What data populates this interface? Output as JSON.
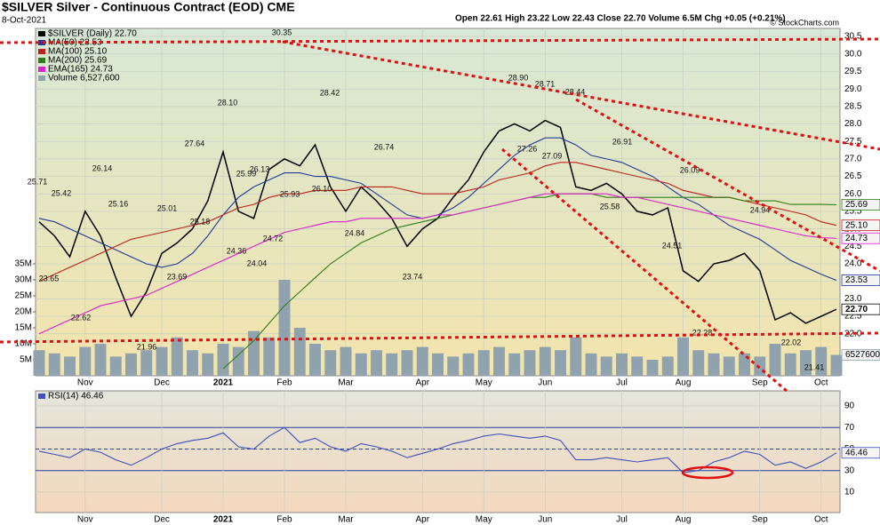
{
  "chart_data": [
    {
      "type": "line",
      "title": "$SILVER Silver - Continuous Contract (EOD) CME",
      "subtitle": "8-Oct-2021",
      "quote": "Open 22.61 High 23.22 Low 22.43 Close 22.70 Volume 6.5M Chg +0.05 (+0.21%)",
      "credit": "© StockCharts.com",
      "categories": [
        null,
        null,
        null,
        "Nov",
        null,
        null,
        null,
        null,
        "Dec",
        null,
        null,
        null,
        "2021",
        null,
        null,
        null,
        "Feb",
        null,
        null,
        null,
        "Mar",
        null,
        null,
        null,
        null,
        "Apr",
        null,
        null,
        null,
        "May",
        null,
        null,
        null,
        "Jun",
        null,
        null,
        null,
        null,
        "Jul",
        null,
        null,
        null,
        "Aug",
        null,
        null,
        null,
        null,
        "Sep",
        null,
        null,
        null,
        "Oct",
        null
      ],
      "series": [
        {
          "name": "$SILVER (Daily) 22.70",
          "color": "#000000",
          "last_label": "22.70",
          "values": [
            25.2,
            24.8,
            24.2,
            25.5,
            24.8,
            23.6,
            22.5,
            23.2,
            24.3,
            24.6,
            25.0,
            25.8,
            27.2,
            25.5,
            25.3,
            26.7,
            27.0,
            26.8,
            27.4,
            26.2,
            25.5,
            26.2,
            25.8,
            25.3,
            24.5,
            25.0,
            25.3,
            25.9,
            26.4,
            27.2,
            27.8,
            28.0,
            27.8,
            28.1,
            27.9,
            26.2,
            26.1,
            26.3,
            26.0,
            25.5,
            25.4,
            25.6,
            23.8,
            23.5,
            24.0,
            24.1,
            24.3,
            23.8,
            22.4,
            22.6,
            22.3,
            22.5,
            22.7
          ]
        },
        {
          "name": "MA(50) 23.53",
          "color": "#1f3a9a",
          "last_label": "23.53",
          "values": [
            25.3,
            25.2,
            25.0,
            24.8,
            24.6,
            24.4,
            24.2,
            24.0,
            23.9,
            24.0,
            24.3,
            24.8,
            25.4,
            25.9,
            26.2,
            26.4,
            26.6,
            26.6,
            26.5,
            26.5,
            26.4,
            26.3,
            26.0,
            25.7,
            25.4,
            25.3,
            25.4,
            25.6,
            25.9,
            26.3,
            26.7,
            27.1,
            27.4,
            27.6,
            27.6,
            27.4,
            27.1,
            27.0,
            26.9,
            26.7,
            26.5,
            26.2,
            25.9,
            25.7,
            25.4,
            25.1,
            24.9,
            24.7,
            24.4,
            24.1,
            23.9,
            23.7,
            23.53
          ]
        },
        {
          "name": "MA(100) 25.10",
          "color": "#c0201c",
          "last_label": "25.10",
          "values": [
            23.5,
            23.7,
            23.9,
            24.1,
            24.3,
            24.5,
            24.7,
            24.8,
            24.9,
            25.0,
            25.1,
            25.2,
            25.4,
            25.6,
            25.7,
            25.9,
            26.0,
            26.0,
            26.1,
            26.1,
            26.1,
            26.2,
            26.2,
            26.2,
            26.1,
            26.0,
            26.0,
            26.0,
            26.1,
            26.2,
            26.4,
            26.5,
            26.6,
            26.8,
            26.9,
            26.9,
            26.8,
            26.7,
            26.6,
            26.5,
            26.4,
            26.3,
            26.1,
            26.0,
            25.9,
            25.9,
            25.8,
            25.7,
            25.6,
            25.5,
            25.4,
            25.2,
            25.1
          ]
        },
        {
          "name": "MA(200) 25.69",
          "color": "#2e7d1a",
          "last_label": "25.69",
          "values": [
            null,
            null,
            null,
            null,
            null,
            null,
            null,
            null,
            null,
            null,
            null,
            null,
            21.0,
            21.4,
            21.8,
            22.3,
            22.8,
            23.2,
            23.6,
            24.0,
            24.3,
            24.6,
            24.8,
            25.0,
            25.1,
            25.2,
            25.3,
            25.4,
            25.5,
            25.6,
            25.7,
            25.8,
            25.9,
            25.9,
            26.0,
            26.0,
            26.0,
            25.9,
            25.9,
            25.9,
            25.9,
            25.9,
            25.9,
            25.9,
            25.9,
            25.9,
            25.8,
            25.8,
            25.8,
            25.7,
            25.7,
            25.7,
            25.69
          ]
        },
        {
          "name": "EMA(165) 24.73",
          "color": "#e020d0",
          "last_label": "24.73",
          "values": [
            22.0,
            22.2,
            22.4,
            22.6,
            22.8,
            22.9,
            23.0,
            23.1,
            23.3,
            23.5,
            23.7,
            23.9,
            24.1,
            24.3,
            24.5,
            24.7,
            24.9,
            25.0,
            25.1,
            25.2,
            25.2,
            25.3,
            25.3,
            25.3,
            25.3,
            25.3,
            25.4,
            25.4,
            25.5,
            25.6,
            25.7,
            25.8,
            25.9,
            26.0,
            26.0,
            26.0,
            26.0,
            26.0,
            25.9,
            25.9,
            25.8,
            25.7,
            25.6,
            25.5,
            25.4,
            25.3,
            25.2,
            25.1,
            25.0,
            24.9,
            24.8,
            24.75,
            24.73
          ]
        },
        {
          "name": "Volume 6,527,600",
          "color": "#8fa2ad",
          "type": "bar",
          "axis": "y2",
          "last_label": "6527600",
          "values": [
            8,
            7,
            6,
            9,
            10,
            6,
            7,
            8,
            9,
            12,
            8,
            7,
            10,
            9,
            14,
            12,
            30,
            15,
            10,
            8,
            9,
            7,
            8,
            7,
            8,
            9,
            7,
            6,
            7,
            8,
            9,
            7,
            8,
            9,
            8,
            12,
            7,
            6,
            7,
            6,
            5,
            6,
            12,
            8,
            7,
            6,
            7,
            6,
            10,
            7,
            8,
            9,
            6.5276
          ]
        }
      ],
      "ylim": [
        20.8,
        30.73
      ],
      "yticks": [
        {
          "value": 22,
          "label": "22.0"
        },
        {
          "value": 22.5,
          "label": "22.5"
        },
        {
          "value": 23,
          "label": "23.0"
        },
        {
          "value": 23.5,
          "label": "23.5"
        },
        {
          "value": 24,
          "label": "24.0"
        },
        {
          "value": 24.5,
          "label": "24.5"
        },
        {
          "value": 25,
          "label": "25.0"
        },
        {
          "value": 25.5,
          "label": "25.5"
        },
        {
          "value": 26,
          "label": "26.0"
        },
        {
          "value": 26.5,
          "label": "26.5"
        },
        {
          "value": 27,
          "label": "27.0"
        },
        {
          "value": 27.5,
          "label": "27.5"
        },
        {
          "value": 28,
          "label": "28.0"
        },
        {
          "value": 28.5,
          "label": "28.5"
        },
        {
          "value": 29,
          "label": "29.0"
        },
        {
          "value": 29.5,
          "label": "29.5"
        },
        {
          "value": 30,
          "label": "30.0"
        },
        {
          "value": 30.5,
          "label": "30.5"
        }
      ],
      "y2lim": [
        0,
        108.6
      ],
      "y2ticks": [
        {
          "value": 5,
          "label": "5M"
        },
        {
          "value": 10,
          "label": "10M"
        },
        {
          "value": 15,
          "label": "15M"
        },
        {
          "value": 20,
          "label": "20M"
        },
        {
          "value": 25,
          "label": "25M"
        },
        {
          "value": 30,
          "label": "30M"
        },
        {
          "value": 35,
          "label": "35M"
        }
      ],
      "grid": true,
      "annotations": [
        "30.35",
        "28.90",
        "28.71",
        "28.44",
        "28.42",
        "28.10",
        "27.64",
        "27.26",
        "27.09",
        "26.91",
        "26.74",
        "26.14",
        "26.13",
        "25.99",
        "26.10",
        "25.93",
        "25.71",
        "25.42",
        "25.16",
        "25.01",
        "25.18",
        "26.09",
        "25.58",
        "24.94",
        "24.36",
        "24.72",
        "24.04",
        "24.84",
        "24.51",
        "23.74",
        "23.69",
        "23.65",
        "22.62",
        "21.96",
        "22.28",
        "22.02",
        "21.41"
      ]
    },
    {
      "type": "line",
      "categories": [
        null,
        null,
        null,
        "Nov",
        null,
        null,
        null,
        null,
        "Dec",
        null,
        null,
        null,
        "2021",
        null,
        null,
        null,
        "Feb",
        null,
        null,
        null,
        "Mar",
        null,
        null,
        null,
        null,
        "Apr",
        null,
        null,
        null,
        "May",
        null,
        null,
        null,
        "Jun",
        null,
        null,
        null,
        null,
        "Jul",
        null,
        null,
        null,
        "Aug",
        null,
        null,
        null,
        null,
        "Sep",
        null,
        null,
        null,
        "Oct",
        null
      ],
      "series": [
        {
          "name": "RSI(14) 46.46",
          "color": "#3f4fc0",
          "last_label": "46.46",
          "values": [
            48,
            45,
            42,
            50,
            47,
            40,
            35,
            42,
            50,
            55,
            58,
            60,
            65,
            52,
            50,
            62,
            70,
            56,
            60,
            52,
            48,
            55,
            52,
            48,
            42,
            46,
            50,
            55,
            58,
            62,
            64,
            62,
            60,
            62,
            58,
            40,
            40,
            42,
            40,
            38,
            40,
            42,
            28,
            30,
            38,
            42,
            48,
            45,
            35,
            38,
            32,
            38,
            46.46
          ]
        }
      ],
      "ylim": [
        -9,
        104
      ],
      "yticks": [
        10,
        30,
        50,
        70,
        90
      ],
      "reference_lines": [
        30,
        50,
        70
      ],
      "grid": true
    }
  ]
}
